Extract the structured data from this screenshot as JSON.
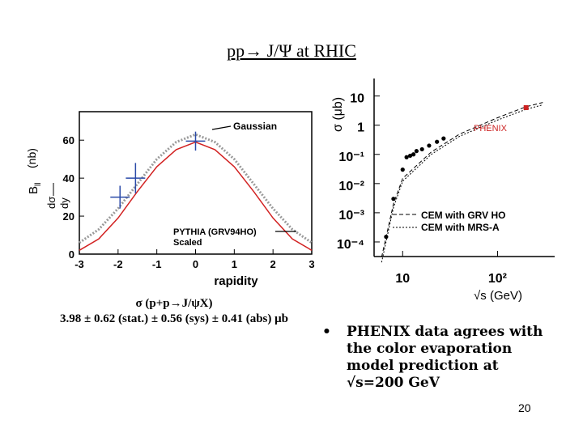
{
  "title": "pp→ J/Ψ at RHIC",
  "caption": {
    "line1": "σ (p+p→J/ψX)",
    "line2": "3.98 ± 0.62 (stat.) ± 0.56 (sys) ± 0.41 (abs) μb"
  },
  "bullet": {
    "symbol": "•",
    "text": "PHENIX data agrees with the color evaporation model prediction at √s=200 GeV"
  },
  "page_number": "20",
  "chart_data": [
    {
      "type": "line",
      "xlabel": "rapidity",
      "ylabel": "Bₗₗ dσ/dy (nb)",
      "xlim": [
        -3,
        3
      ],
      "ylim": [
        0,
        75
      ],
      "xticks": [
        "-3",
        "-2",
        "-1",
        "0",
        "1",
        "2",
        "3"
      ],
      "yticks": [
        "0",
        "20",
        "40",
        "60"
      ],
      "annotations": [
        "Gaussian",
        "PYTHIA (GRV94HO)",
        "Scaled"
      ],
      "series": [
        {
          "name": "Gaussian",
          "color": "#9a9a9a",
          "x": [
            -3,
            -2.5,
            -2,
            -1.5,
            -1,
            -0.5,
            0,
            0.5,
            1,
            1.5,
            2,
            2.5,
            3
          ],
          "y": [
            6,
            13,
            24,
            37,
            50,
            59,
            63,
            59,
            50,
            37,
            24,
            13,
            6
          ]
        },
        {
          "name": "PYTHIA (GRV94HO) Scaled",
          "color": "#d22222",
          "x": [
            -3,
            -2.5,
            -2,
            -1.5,
            -1,
            -0.5,
            0,
            0.5,
            1,
            1.5,
            2,
            2.5,
            3
          ],
          "y": [
            2,
            8,
            19,
            33,
            46,
            55,
            59,
            55,
            46,
            33,
            19,
            8,
            2
          ]
        },
        {
          "name": "data",
          "color": "#2a4aa8",
          "points": [
            {
              "x": -1.95,
              "y": 30,
              "xerr": 0.25,
              "yerr": 6
            },
            {
              "x": -1.55,
              "y": 40,
              "xerr": 0.25,
              "yerr": 8
            },
            {
              "x": 0.0,
              "y": 59.5,
              "xerr": 0.25,
              "yerr": 5
            }
          ]
        }
      ]
    },
    {
      "type": "scatter",
      "xlabel": "√s (GeV)",
      "ylabel": "σ (μb)",
      "xscale": "log",
      "yscale": "log",
      "xticks": [
        "10",
        "10²"
      ],
      "yticks": [
        "10⁻⁴",
        "10⁻³",
        "10⁻²",
        "10⁻¹",
        "1",
        "10"
      ],
      "annotations": [
        "PHENIX",
        "CEM with GRV HO",
        "CEM with MRS-A"
      ],
      "series": [
        {
          "name": "fixed target data",
          "color": "#000000",
          "x": [
            6.7,
            8,
            10,
            11,
            12,
            13,
            14,
            16,
            19,
            23,
            27
          ],
          "y": [
            0.00015,
            0.003,
            0.03,
            0.08,
            0.09,
            0.1,
            0.13,
            0.15,
            0.2,
            0.27,
            0.35
          ]
        },
        {
          "name": "PHENIX",
          "color": "#cc2222",
          "x": [
            200
          ],
          "y": [
            4
          ]
        },
        {
          "name": "CEM with GRV HO",
          "style": "dashed",
          "color": "#000000",
          "x": [
            6,
            8,
            10,
            20,
            40,
            100,
            200,
            300
          ],
          "y": [
            3e-05,
            0.002,
            0.015,
            0.12,
            0.5,
            1.8,
            4.3,
            6
          ]
        },
        {
          "name": "CEM with MRS-A",
          "style": "dotted",
          "color": "#000000",
          "x": [
            6,
            8,
            10,
            20,
            40,
            100,
            200,
            300
          ],
          "y": [
            2e-05,
            0.0015,
            0.012,
            0.1,
            0.42,
            1.5,
            3.5,
            5
          ]
        }
      ]
    }
  ]
}
